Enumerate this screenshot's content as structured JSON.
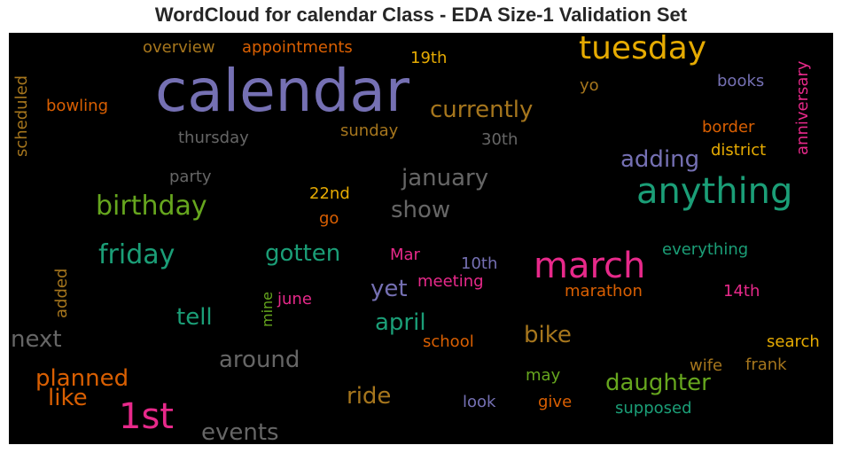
{
  "title": "WordCloud for calendar Class - EDA Size-1 Validation Set",
  "colors": {
    "background": "#000000",
    "purple": "#7570b3",
    "green": "#1b9e77",
    "pink": "#e7298a",
    "orange": "#d95f02",
    "olive": "#66a61e",
    "gold": "#e6ab02",
    "brown": "#a6761d",
    "gray": "#666666"
  },
  "words": [
    "calendar",
    "tuesday",
    "anything",
    "march",
    "1st",
    "birthday",
    "friday",
    "currently",
    "january",
    "show",
    "adding",
    "gotten",
    "tell",
    "next",
    "april",
    "yet",
    "planned",
    "like",
    "around",
    "bike",
    "daughter",
    "ride",
    "events",
    "overview",
    "appointments",
    "19th",
    "scheduled",
    "bowling",
    "yo",
    "books",
    "thursday",
    "sunday",
    "30th",
    "border",
    "district",
    "anniversary",
    "party",
    "22nd",
    "go",
    "Mar",
    "10th",
    "meeting",
    "june",
    "mine",
    "added",
    "everything",
    "marathon",
    "14th",
    "school",
    "search",
    "wife",
    "frank",
    "may",
    "look",
    "give",
    "supposed"
  ]
}
